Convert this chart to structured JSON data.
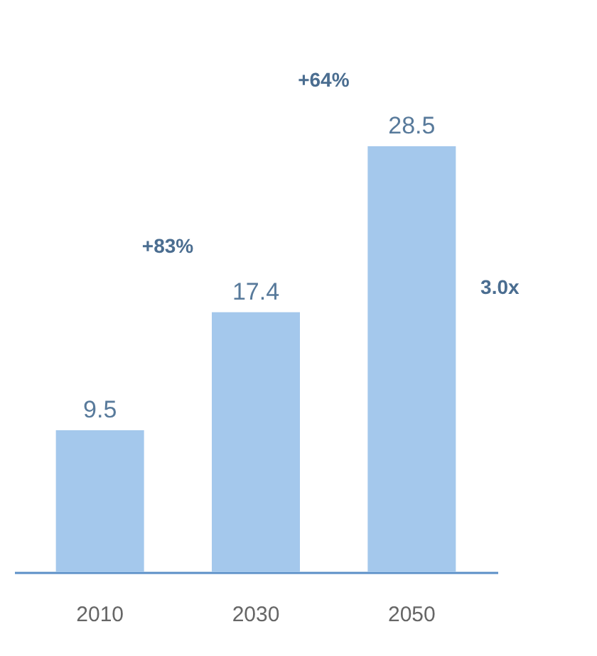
{
  "chart_data": {
    "type": "bar",
    "categories": [
      "2010",
      "2030",
      "2050"
    ],
    "values": [
      9.5,
      17.4,
      28.5
    ],
    "color": "#a4c8ec",
    "data_labels": true,
    "annotations": [
      "+83%",
      "+64%",
      "3.0x"
    ]
  }
}
